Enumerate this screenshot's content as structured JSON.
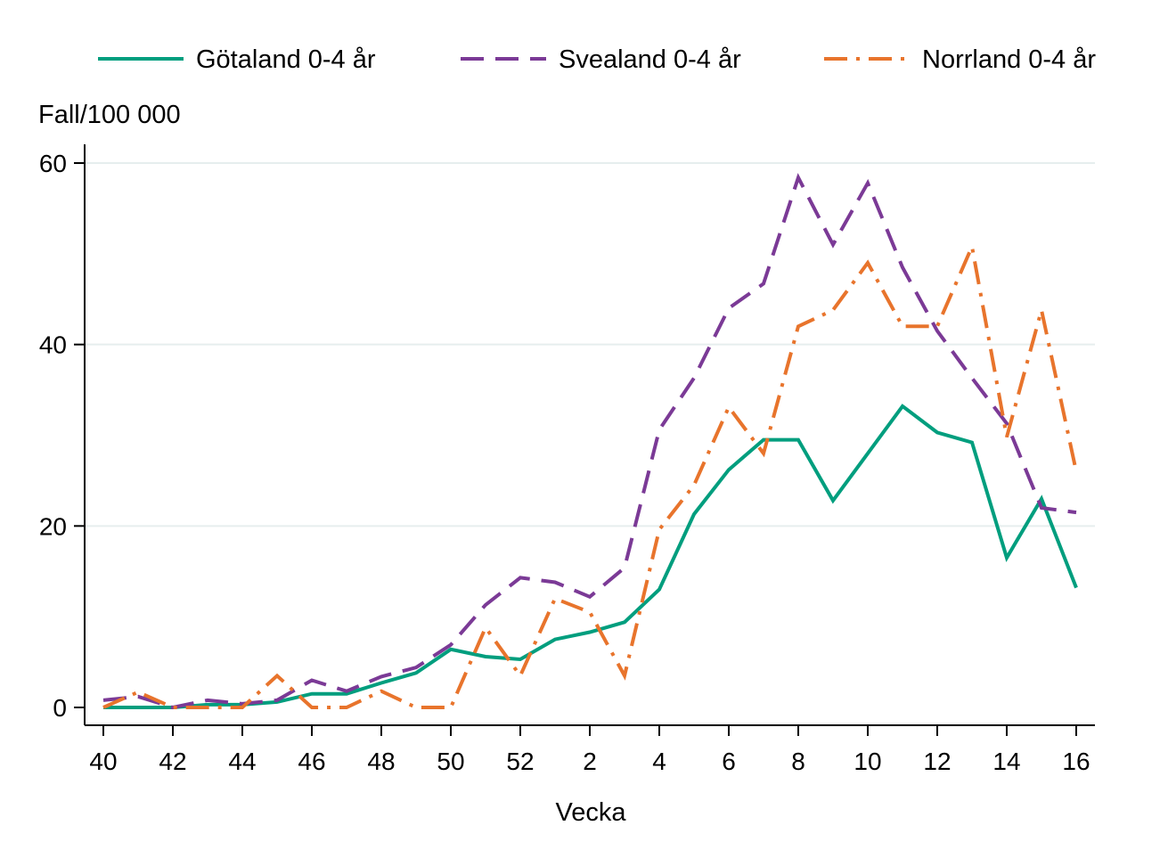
{
  "chart_data": {
    "type": "line",
    "title": "",
    "ylabel": "Fall/100 000",
    "xlabel": "Vecka",
    "ylim": [
      0,
      60
    ],
    "yticks": [
      0,
      20,
      40,
      60
    ],
    "grid": true,
    "legend_position": "top",
    "weeks": [
      "40",
      "41",
      "42",
      "43",
      "44",
      "45",
      "46",
      "47",
      "48",
      "49",
      "50",
      "51",
      "52",
      "1",
      "2",
      "3",
      "4",
      "5",
      "6",
      "7",
      "8",
      "9",
      "10",
      "11",
      "12",
      "13",
      "14",
      "15",
      "16"
    ],
    "xtick_labels": [
      "40",
      "42",
      "44",
      "46",
      "48",
      "50",
      "52",
      "2",
      "4",
      "6",
      "8",
      "10",
      "12",
      "14",
      "16"
    ],
    "series": [
      {
        "name": "Götaland 0-4 år",
        "color": "#009E7E",
        "dash": "solid",
        "values": [
          0,
          0,
          0,
          0.3,
          0.3,
          0.6,
          1.5,
          1.5,
          2.7,
          3.8,
          6.4,
          5.6,
          5.3,
          7.5,
          8.3,
          9.4,
          13.0,
          21.3,
          26.2,
          29.5,
          29.5,
          22.8,
          28.0,
          33.2,
          30.3,
          29.2,
          16.5,
          23.0,
          13.2
        ]
      },
      {
        "name": "Svealand 0-4 år",
        "color": "#7B3A96",
        "dash": "dash",
        "values": [
          0.8,
          1.2,
          0,
          0.8,
          0.4,
          0.8,
          3.0,
          1.8,
          3.4,
          4.4,
          6.9,
          11.3,
          14.3,
          13.8,
          12.2,
          15.4,
          30.6,
          36.3,
          44.0,
          46.7,
          58.4,
          51.0,
          57.8,
          48.5,
          41.5,
          36.3,
          31.3,
          22.0,
          21.5
        ]
      },
      {
        "name": "Norrland 0-4 år",
        "color": "#E8742C",
        "dash": "dashdot",
        "values": [
          0,
          1.7,
          0,
          0,
          0,
          3.5,
          0,
          0,
          1.8,
          0,
          0,
          8.8,
          3.5,
          12.0,
          10.5,
          3.5,
          19.6,
          24.5,
          33.1,
          28.0,
          42.0,
          43.8,
          49.0,
          42.0,
          42.0,
          50.8,
          29.8,
          43.8,
          26.0
        ]
      }
    ]
  }
}
